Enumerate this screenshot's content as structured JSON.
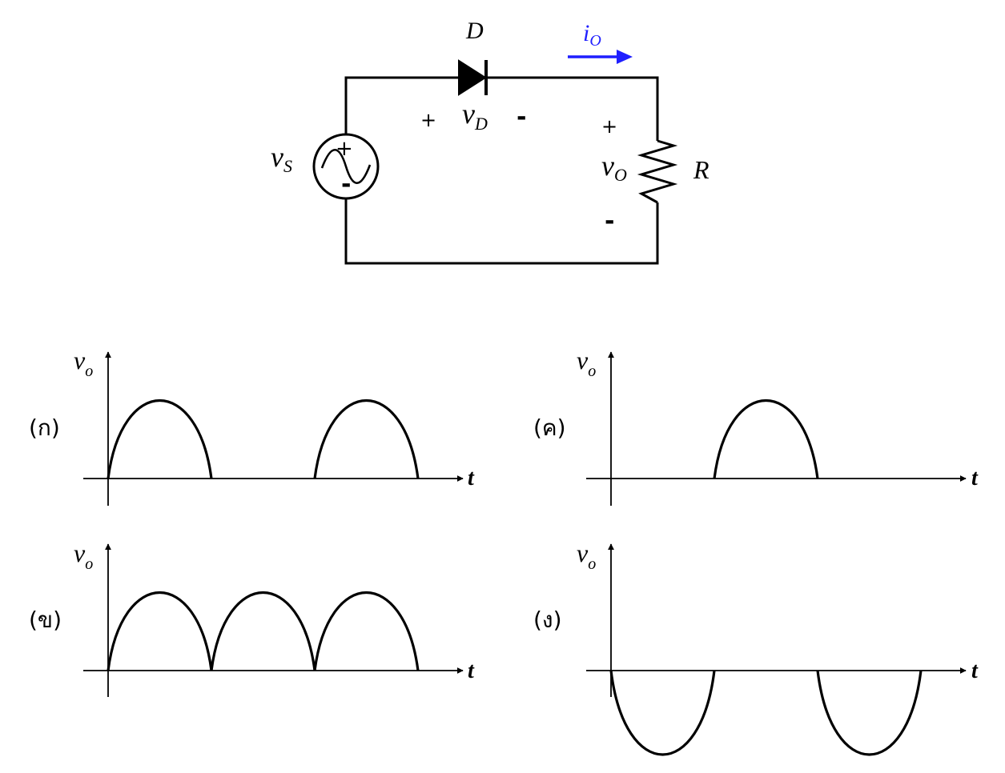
{
  "circuit": {
    "diode_label": "D",
    "current_label": "i",
    "current_subscript": "O",
    "current_color": "#1f1fff",
    "diode_voltage_label": "v",
    "diode_voltage_subscript": "D",
    "diode_plus": "+",
    "diode_minus": "-",
    "source_label": "v",
    "source_subscript": "S",
    "source_plus": "+",
    "source_minus": "-",
    "output_label": "v",
    "output_subscript": "O",
    "output_plus": "+",
    "output_minus": "-",
    "resistor_label": "R"
  },
  "graphs": {
    "a": {
      "option": "(ก)",
      "ylabel": "v",
      "ysub": "o",
      "xlabel": "t",
      "waveform": "half-wave positive"
    },
    "b": {
      "option": "(ข)",
      "ylabel": "v",
      "ysub": "o",
      "xlabel": "t",
      "waveform": "full-wave"
    },
    "c": {
      "option": "(ค)",
      "ylabel": "v",
      "ysub": "o",
      "xlabel": "t",
      "waveform": "single positive pulse"
    },
    "d": {
      "option": "(ง)",
      "ylabel": "v",
      "ysub": "o",
      "xlabel": "t",
      "waveform": "half-wave negative"
    }
  }
}
